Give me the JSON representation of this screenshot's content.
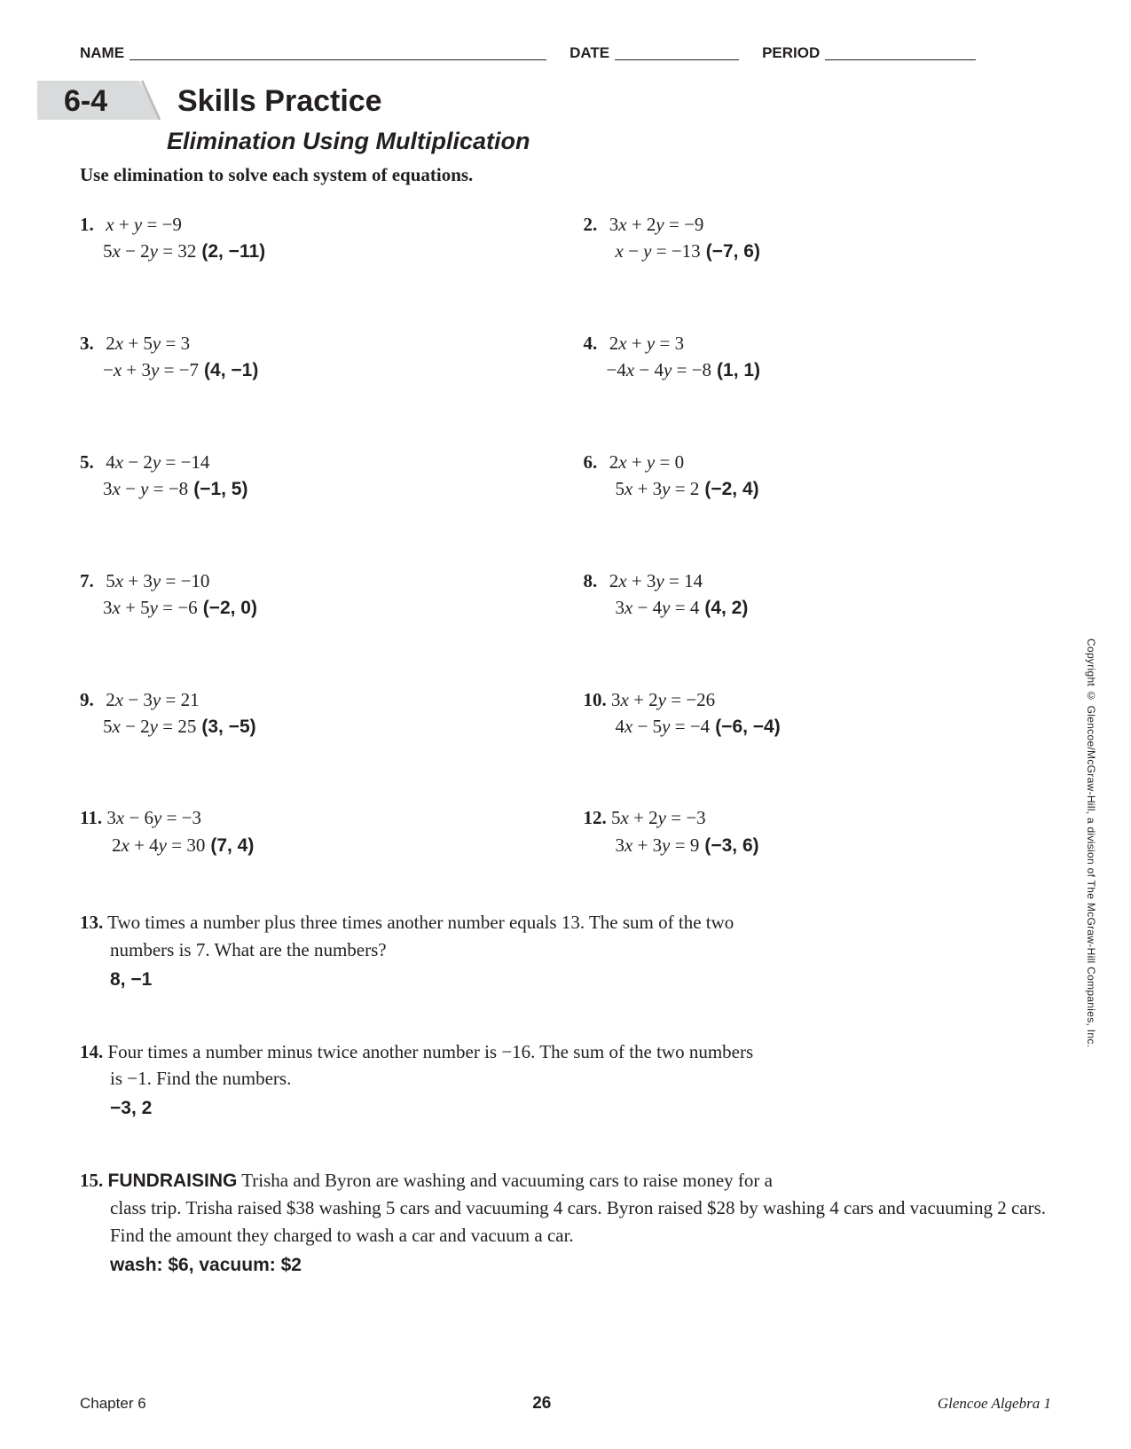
{
  "header": {
    "name_label": "NAME",
    "date_label": "DATE",
    "period_label": "PERIOD"
  },
  "lesson": {
    "number": "6-4",
    "title": "Skills Practice",
    "subtitle": "Elimination Using Multiplication",
    "instructions": "Use elimination to solve each system of equations.",
    "banner_colors": {
      "fill": "#d9dadb",
      "stroke": "#bfc0c1"
    }
  },
  "problems": [
    {
      "n": "1.",
      "eq1_pre": "",
      "eq1": "x + y = −9",
      "eq2": "5x − 2y = 32",
      "ans": "(2, −11)",
      "indent": "line2"
    },
    {
      "n": "2.",
      "eq1_pre": "",
      "eq1": "3x + 2y = −9",
      "eq2": "x − y = −13",
      "ans": "(−7, 6)",
      "indent": "line2 wide"
    },
    {
      "n": "3.",
      "eq1_pre": "",
      "eq1": "2x + 5y = 3",
      "eq2": "−x + 3y = −7",
      "ans": "(4, −1)",
      "indent": "line2"
    },
    {
      "n": "4.",
      "eq1_pre": "",
      "eq1": "2x + y = 3",
      "eq2": "−4x − 4y = −8",
      "ans": "(1, 1)",
      "indent": "line2"
    },
    {
      "n": "5.",
      "eq1_pre": "",
      "eq1": "4x − 2y = −14",
      "eq2": "3x − y = −8",
      "ans": "(−1, 5)",
      "indent": "line2"
    },
    {
      "n": "6.",
      "eq1_pre": "",
      "eq1": "2x + y = 0",
      "eq2": "5x + 3y = 2",
      "ans": "(−2, 4)",
      "indent": "line2 wide"
    },
    {
      "n": "7.",
      "eq1_pre": "",
      "eq1": "5x + 3y = −10",
      "eq2": "3x + 5y = −6",
      "ans": "(−2, 0)",
      "indent": "line2"
    },
    {
      "n": "8.",
      "eq1_pre": "",
      "eq1": "2x + 3y = 14",
      "eq2": "3x − 4y = 4",
      "ans": "(4, 2)",
      "indent": "line2 wide"
    },
    {
      "n": "9.",
      "eq1_pre": "",
      "eq1": "2x − 3y = 21",
      "eq2": "5x − 2y = 25",
      "ans": "(3, −5)",
      "indent": "line2"
    },
    {
      "n": "10.",
      "eq1_pre": "",
      "eq1": "3x + 2y = −26",
      "eq2": "4x − 5y = −4",
      "ans": "(−6, −4)",
      "indent": "line2 wide"
    },
    {
      "n": "11.",
      "eq1_pre": "",
      "eq1": "3x − 6y = −3",
      "eq2": "2x + 4y = 30",
      "ans": "(7, 4)",
      "indent": "line2 wide"
    },
    {
      "n": "12.",
      "eq1_pre": "",
      "eq1": "5x + 2y = −3",
      "eq2": "3x + 3y = 9",
      "ans": "(−3, 6)",
      "indent": "line2 wide"
    }
  ],
  "word_problems": [
    {
      "n": "13.",
      "heading": "",
      "line1": "Two times a number plus three times another number equals 13. The sum of the two",
      "rest": "numbers is 7. What are the numbers?",
      "answer": "8, −1"
    },
    {
      "n": "14.",
      "heading": "",
      "line1": "Four times a number minus twice another number is −16. The sum of the two numbers",
      "rest": "is −1. Find the numbers.",
      "answer": "−3, 2"
    },
    {
      "n": "15.",
      "heading": "FUNDRAISING",
      "line1": "Trisha and Byron are washing and vacuuming cars to raise money for a",
      "rest": "class trip. Trisha raised $38 washing 5 cars and vacuuming 4 cars. Byron raised $28 by washing 4 cars and vacuuming 2 cars. Find the amount they charged to wash a car and vacuum a car.",
      "answer": "wash: $6, vacuum: $2"
    }
  ],
  "copyright": "Copyright © Glencoe/McGraw-Hill, a division of The McGraw-Hill Companies, Inc.",
  "footer": {
    "chapter": "Chapter 6",
    "page": "26",
    "book": "Glencoe Algebra 1"
  }
}
